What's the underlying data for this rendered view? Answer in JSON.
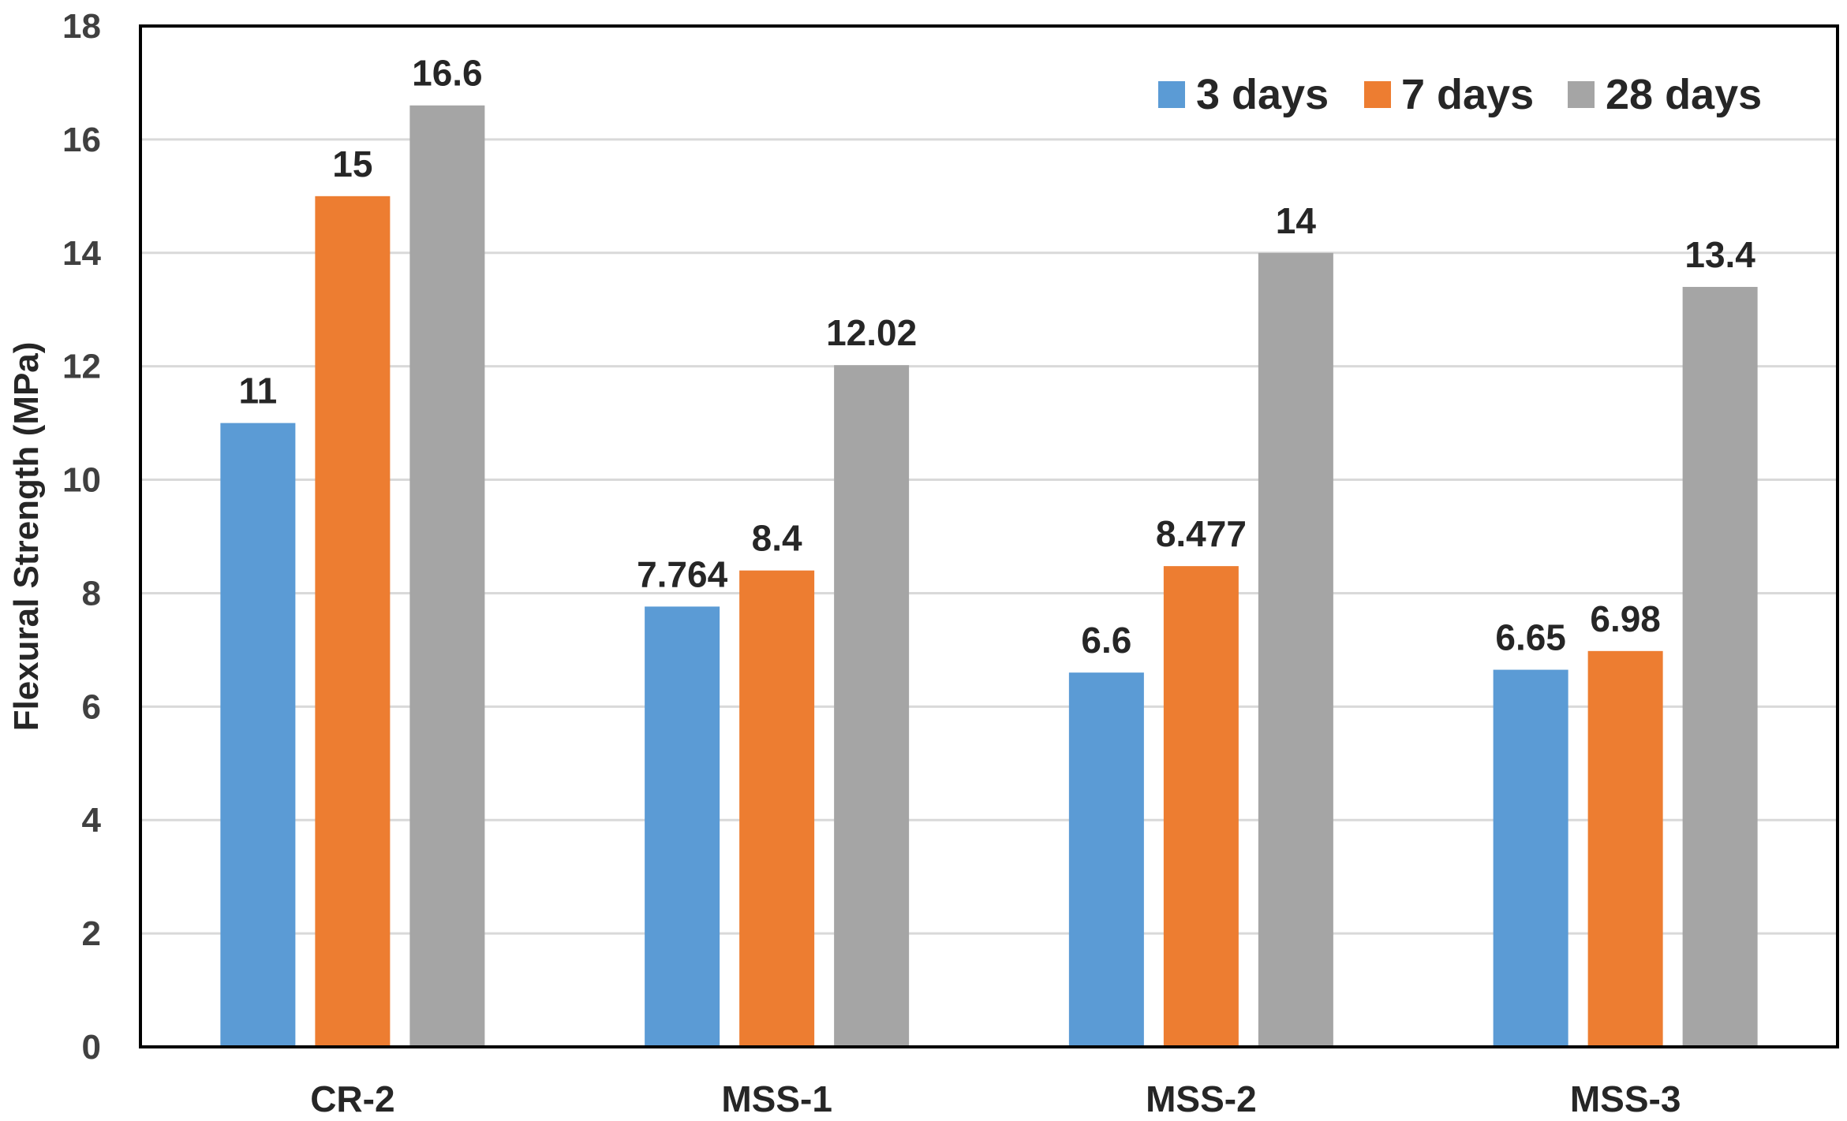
{
  "chart_data": {
    "type": "bar",
    "title": "",
    "xlabel": "",
    "ylabel": "Flexural Strength (MPa)",
    "ylim": [
      0,
      18
    ],
    "yticks": [
      0,
      2,
      4,
      6,
      8,
      10,
      12,
      14,
      16,
      18
    ],
    "grid": true,
    "legend_position": "top-right",
    "categories": [
      "CR-2",
      "MSS-1",
      "MSS-2",
      "MSS-3"
    ],
    "series": [
      {
        "name": "3 days",
        "color": "#5b9bd5",
        "values": [
          11,
          7.764,
          6.6,
          6.65
        ],
        "labels": [
          "11",
          "7.764",
          "6.6",
          "6.65"
        ]
      },
      {
        "name": "7 days",
        "color": "#ed7d31",
        "values": [
          15,
          8.4,
          8.477,
          6.98
        ],
        "labels": [
          "15",
          "8.4",
          "8.477",
          "6.98"
        ]
      },
      {
        "name": "28 days",
        "color": "#a5a5a5",
        "values": [
          16.6,
          12.02,
          14,
          13.4
        ],
        "labels": [
          "16.6",
          "12.02",
          "14",
          "13.4"
        ]
      }
    ]
  }
}
